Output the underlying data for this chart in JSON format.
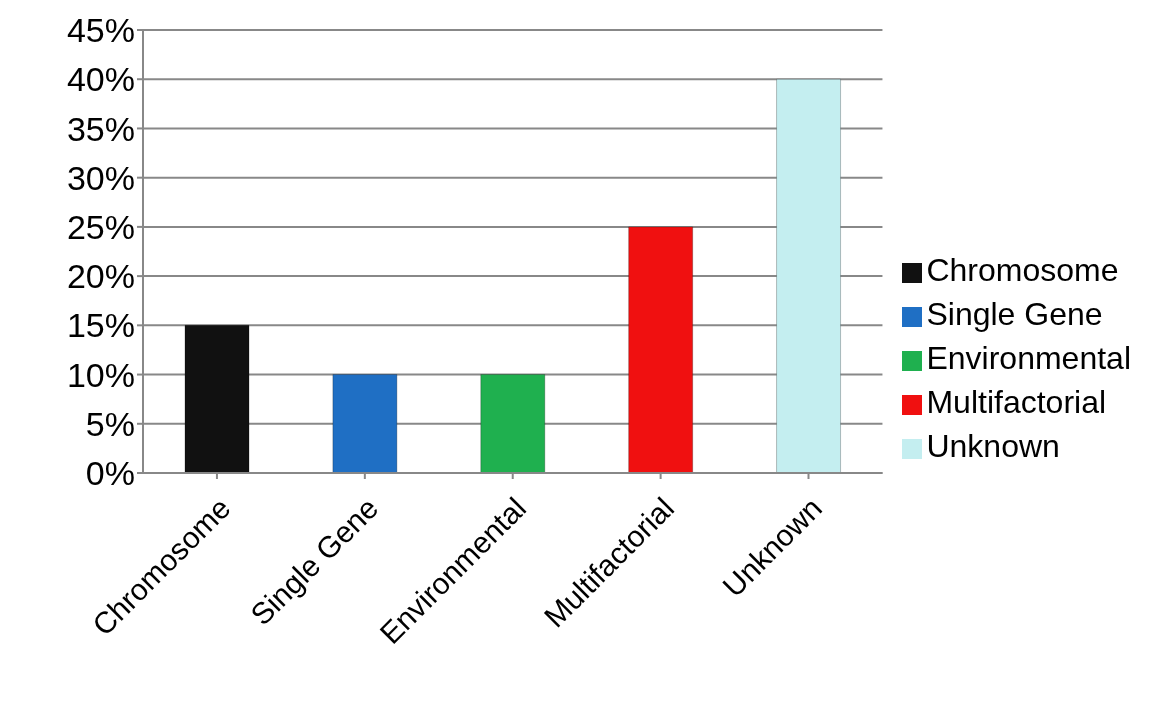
{
  "chart_data": {
    "type": "bar",
    "categories": [
      "Chromosome",
      "Single Gene",
      "Environmental",
      "Multifactorial",
      "Unknown"
    ],
    "series": [
      {
        "name": "Chromosome",
        "color": "#111111",
        "values": [
          15,
          null,
          null,
          null,
          null
        ]
      },
      {
        "name": "Single Gene",
        "color": "#1f6fc4",
        "values": [
          null,
          10,
          null,
          null,
          null
        ]
      },
      {
        "name": "Environmental",
        "color": "#1fb04f",
        "values": [
          null,
          null,
          10,
          null,
          null
        ]
      },
      {
        "name": "Multifactorial",
        "color": "#f01010",
        "values": [
          null,
          null,
          null,
          25,
          null
        ]
      },
      {
        "name": "Unknown",
        "color": "#c4eef0",
        "values": [
          null,
          null,
          null,
          null,
          40
        ]
      }
    ],
    "stacked": true,
    "ylim": [
      0,
      45
    ],
    "yticks": [
      {
        "value": 0,
        "label": "0%"
      },
      {
        "value": 5,
        "label": "5%"
      },
      {
        "value": 10,
        "label": "10%"
      },
      {
        "value": 15,
        "label": "15%"
      },
      {
        "value": 20,
        "label": "20%"
      },
      {
        "value": 25,
        "label": "25%"
      },
      {
        "value": 30,
        "label": "30%"
      },
      {
        "value": 35,
        "label": "35%"
      },
      {
        "value": 40,
        "label": "40%"
      },
      {
        "value": 45,
        "label": "45%"
      }
    ],
    "grid": "y",
    "legend": "right"
  }
}
